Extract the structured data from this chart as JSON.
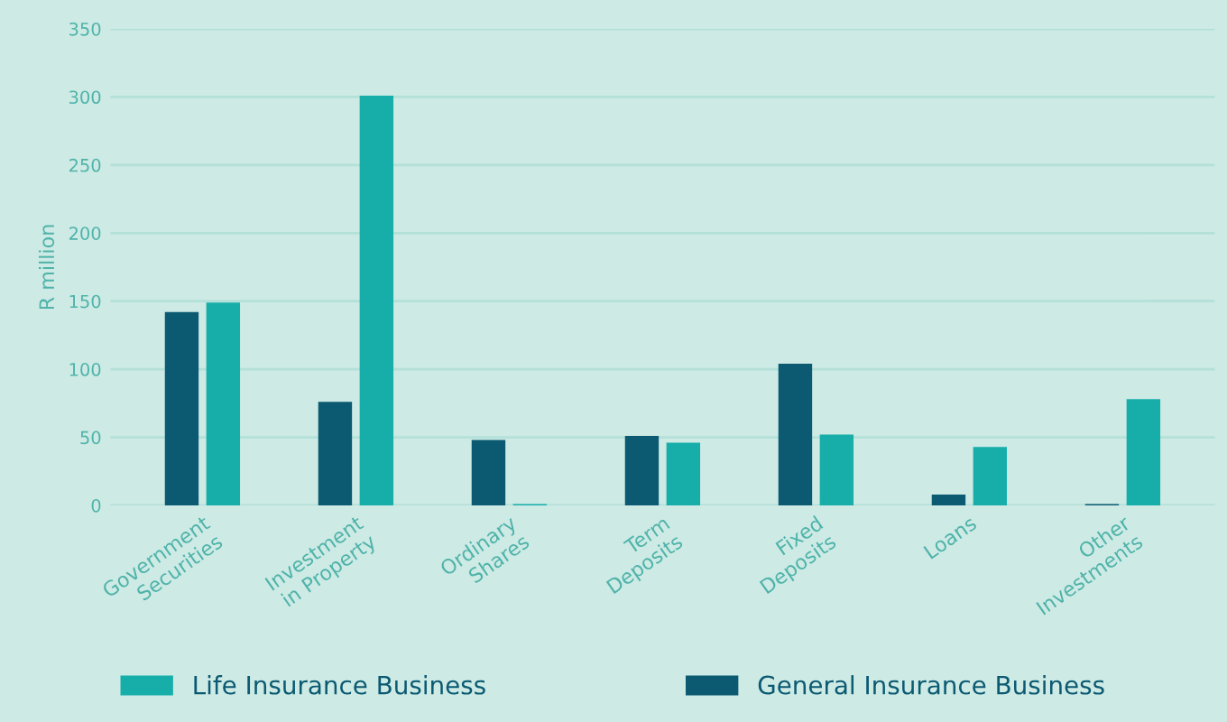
{
  "chart_data": {
    "type": "bar",
    "ylabel": "R million",
    "categories": [
      "Government\nSecurities",
      "Investment\nin Property",
      "Ordinary\nShares",
      "Term\nDeposits",
      "Fixed\nDeposits",
      "Loans",
      "Other\nInvestments"
    ],
    "series": [
      {
        "name": "General Insurance Business",
        "color": "#0b5a72",
        "values": [
          142,
          76,
          48,
          51,
          104,
          8,
          1
        ]
      },
      {
        "name": "Life Insurance Business",
        "color": "#17aeaa",
        "values": [
          149,
          301,
          1,
          46,
          52,
          43,
          78
        ]
      }
    ],
    "ylim": [
      0,
      350
    ],
    "yticks": [
      0,
      50,
      100,
      150,
      200,
      250,
      300,
      350
    ],
    "grid": "y",
    "legend": "bottom"
  }
}
